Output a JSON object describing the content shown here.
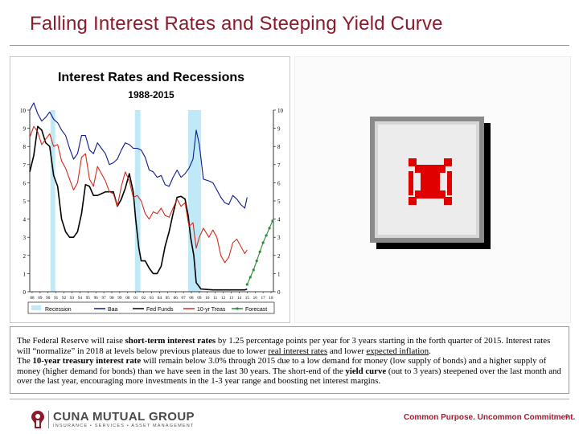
{
  "slide": {
    "title": "Falling Interest Rates and Steeping Yield Curve",
    "page_number": "6"
  },
  "chart_data": {
    "type": "line",
    "title": "Interest Rates and Recessions",
    "subtitle": "1988-2015",
    "ylim": [
      0,
      10
    ],
    "yticks": [
      "0",
      "1",
      "2",
      "3",
      "4",
      "5",
      "6",
      "7",
      "8",
      "9",
      "10"
    ],
    "xlim": [
      1988,
      2018.6
    ],
    "xticks": [
      "88",
      "89",
      "90",
      "91",
      "92",
      "93",
      "94",
      "95",
      "96",
      "97",
      "98",
      "99",
      "00",
      "01",
      "02",
      "03",
      "04",
      "05",
      "06",
      "07",
      "08",
      "09",
      "10",
      "11",
      "12",
      "13",
      "14",
      "15",
      "16",
      "17",
      "18"
    ],
    "grid": false,
    "legend": "bottom",
    "recessions": [
      [
        1990.6,
        1991.2
      ],
      [
        2001.2,
        2001.9
      ],
      [
        2007.9,
        2009.5
      ]
    ],
    "series": [
      {
        "name": "Baa",
        "color": "#0b1a8c",
        "x": [
          1988.0,
          1988.5,
          1989.0,
          1989.5,
          1990.0,
          1990.5,
          1991.0,
          1991.5,
          1992.0,
          1992.5,
          1993.0,
          1993.5,
          1994.0,
          1994.5,
          1995.0,
          1995.5,
          1996.0,
          1996.5,
          1997.0,
          1997.5,
          1998.0,
          1998.5,
          1999.0,
          1999.5,
          2000.0,
          2000.5,
          2001.0,
          2001.5,
          2002.0,
          2002.5,
          2003.0,
          2003.5,
          2004.0,
          2004.5,
          2005.0,
          2005.5,
          2006.0,
          2006.5,
          2007.0,
          2007.5,
          2008.0,
          2008.5,
          2008.9,
          2009.3,
          2009.8,
          2010.5,
          2011.0,
          2011.5,
          2012.0,
          2012.5,
          2013.0,
          2013.5,
          2014.0,
          2014.5,
          2015.0,
          2015.3
        ],
        "values": [
          10.0,
          10.4,
          9.8,
          9.4,
          9.6,
          9.9,
          9.5,
          9.3,
          8.9,
          8.6,
          7.9,
          7.3,
          7.6,
          8.6,
          8.6,
          7.8,
          7.6,
          8.2,
          7.9,
          7.6,
          7.0,
          7.1,
          7.3,
          7.8,
          8.2,
          8.1,
          7.9,
          7.9,
          7.8,
          7.4,
          6.7,
          6.6,
          6.3,
          6.4,
          5.9,
          5.8,
          6.3,
          6.7,
          6.3,
          6.5,
          6.8,
          7.3,
          8.9,
          8.1,
          6.2,
          6.1,
          6.0,
          5.6,
          5.2,
          4.9,
          4.8,
          5.3,
          5.1,
          4.8,
          4.6,
          5.2
        ]
      },
      {
        "name": "Fed Funds",
        "color": "#000000",
        "x": [
          1988.0,
          1988.5,
          1989.0,
          1989.5,
          1990.0,
          1990.5,
          1991.0,
          1991.5,
          1992.0,
          1992.5,
          1993.0,
          1993.5,
          1994.0,
          1994.5,
          1995.0,
          1995.5,
          1996.0,
          1996.5,
          1997.0,
          1997.5,
          1998.0,
          1998.5,
          1999.0,
          1999.5,
          2000.0,
          2000.5,
          2001.0,
          2001.3,
          2001.7,
          2002.0,
          2002.5,
          2003.0,
          2003.5,
          2004.0,
          2004.5,
          2005.0,
          2005.5,
          2006.0,
          2006.5,
          2007.0,
          2007.5,
          2007.9,
          2008.2,
          2008.6,
          2008.9,
          2009.5,
          2011.0,
          2013.0,
          2015.0,
          2015.3
        ],
        "values": [
          6.6,
          7.5,
          9.1,
          8.9,
          8.2,
          8.0,
          6.4,
          5.8,
          4.0,
          3.3,
          3.0,
          3.0,
          3.3,
          4.3,
          5.9,
          5.8,
          5.3,
          5.3,
          5.4,
          5.5,
          5.5,
          5.5,
          4.7,
          5.1,
          5.7,
          6.5,
          5.5,
          4.0,
          2.4,
          1.7,
          1.7,
          1.3,
          1.0,
          1.0,
          1.4,
          2.5,
          3.3,
          4.3,
          5.2,
          5.25,
          5.1,
          4.2,
          3.0,
          2.0,
          0.5,
          0.15,
          0.1,
          0.1,
          0.1,
          0.15
        ]
      },
      {
        "name": "10-yr Treas",
        "color": "#d42a1a",
        "x": [
          1988.0,
          1988.5,
          1989.0,
          1989.5,
          1990.0,
          1990.5,
          1991.0,
          1991.5,
          1992.0,
          1992.5,
          1993.0,
          1993.5,
          1994.0,
          1994.5,
          1995.0,
          1995.5,
          1996.0,
          1996.5,
          1997.0,
          1997.5,
          1998.0,
          1998.5,
          1999.0,
          1999.5,
          2000.0,
          2000.5,
          2001.0,
          2001.5,
          2002.0,
          2002.5,
          2003.0,
          2003.5,
          2004.0,
          2004.5,
          2005.0,
          2005.5,
          2006.0,
          2006.5,
          2007.0,
          2007.5,
          2008.0,
          2008.5,
          2008.9,
          2009.3,
          2009.8,
          2010.5,
          2011.0,
          2011.5,
          2012.0,
          2012.5,
          2013.0,
          2013.5,
          2014.0,
          2014.5,
          2015.0,
          2015.3
        ],
        "values": [
          8.5,
          9.1,
          8.8,
          8.1,
          8.4,
          8.7,
          8.0,
          8.1,
          7.2,
          6.8,
          6.2,
          5.6,
          6.0,
          7.4,
          7.6,
          6.2,
          5.8,
          6.9,
          6.5,
          6.1,
          5.5,
          5.4,
          4.7,
          5.8,
          6.6,
          6.1,
          5.2,
          5.3,
          5.0,
          4.3,
          4.0,
          4.4,
          4.3,
          4.6,
          4.2,
          4.1,
          4.6,
          5.1,
          4.7,
          4.9,
          3.6,
          3.8,
          2.4,
          3.0,
          3.5,
          3.0,
          3.4,
          3.0,
          2.0,
          1.6,
          1.9,
          2.7,
          2.9,
          2.5,
          2.1,
          2.3
        ]
      },
      {
        "name": "Forecast",
        "color": "#2e8b3d",
        "x": [
          2015.3,
          2015.7,
          2016.1,
          2016.5,
          2016.9,
          2017.3,
          2017.7,
          2018.1,
          2018.5
        ],
        "values": [
          0.4,
          0.8,
          1.2,
          1.7,
          2.2,
          2.7,
          3.1,
          3.5,
          3.9
        ]
      }
    ],
    "legend_items": [
      "Recession",
      "Baa",
      "Fed Funds",
      "10-yr Treas",
      "Forecast"
    ]
  },
  "placeholder": {
    "icon": "broken-image-icon"
  },
  "text_box": {
    "p1_a": "The Federal Reserve will raise ",
    "p1_b": "short-term interest rates",
    "p1_c": " by 1.25 percentage points per year for 3 years starting in the forth quarter of  2015.  Interest rates will “normalize” in 2018 at levels below previous plateaus due to lower ",
    "p1_d": "real interest rates",
    "p1_e": " and lower ",
    "p1_f": "expected inflation",
    "p1_g": ".",
    "p2_a": "The ",
    "p2_b": "10-year treasury interest rate",
    "p2_c": " will remain below 3.0% through 2015 due to a low demand for money (low supply of bonds) and a higher supply of money (higher demand for bonds) than we have seen in the last 30 years.  The short-end of the ",
    "p2_d": "yield curve",
    "p2_e": " (out to 3 years) steepened over the last month and over the last year, encouraging more investments in the 1-3 year range and boosting net interest margins."
  },
  "footer": {
    "company": "CUNA MUTUAL GROUP",
    "company_sub": "INSURANCE • SERVICES • ASSET MANAGEMENT",
    "tagline": "Common Purpose. Uncommon Commitment."
  },
  "colors": {
    "title": "#8b1a2b",
    "tagline": "#a6192e",
    "recession": "#bfe9f6",
    "baa": "#0b1a8c",
    "fed_funds": "#000000",
    "treasury": "#d42a1a",
    "forecast": "#2e8b3d"
  }
}
